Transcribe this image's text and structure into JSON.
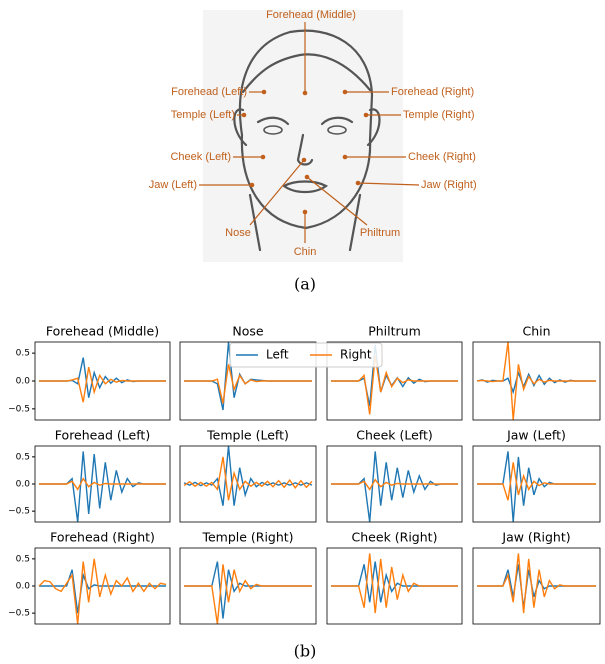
{
  "diagram": {
    "labels": [
      "Forehead (Middle)",
      "Forehead (Left)",
      "Forehead (Right)",
      "Temple (Left)",
      "Temple (Right)",
      "Cheek (Left)",
      "Cheek (Right)",
      "Jaw (Left)",
      "Jaw (Right)",
      "Nose",
      "Philtrum",
      "Chin"
    ],
    "caption": "(a)"
  },
  "chart_data": [
    {
      "type": "line",
      "title": "Forehead (Middle)",
      "ylim": [
        -0.7,
        0.7
      ],
      "yticks": [
        0.5,
        {
          "value": 0,
          "label": "0.0"
        },
        {
          "value": -0.5,
          "label": "−0.5"
        }
      ],
      "series": [
        {
          "name": "Left",
          "color": "#1f77b4",
          "values": [
            0,
            0,
            0,
            0,
            0,
            0,
            0.01,
            -0.05,
            0.42,
            -0.3,
            0.15,
            -0.12,
            0.08,
            -0.04,
            0.05,
            -0.03,
            0.02,
            -0.01,
            0,
            0,
            0,
            0,
            0,
            0
          ]
        },
        {
          "name": "Right",
          "color": "#ff7f0e",
          "values": [
            0,
            0,
            0,
            0,
            0,
            0,
            0.02,
            0.05,
            -0.38,
            0.25,
            -0.2,
            0.1,
            -0.05,
            0.03,
            -0.02,
            0.01,
            0,
            0,
            0,
            0,
            0,
            0,
            0,
            0
          ]
        }
      ]
    },
    {
      "type": "line",
      "title": "Nose",
      "ylim": [
        -0.7,
        0.7
      ],
      "series": [
        {
          "name": "Left",
          "color": "#1f77b4",
          "values": [
            0,
            0,
            0,
            0,
            0,
            0,
            -0.05,
            -0.52,
            0.7,
            -0.3,
            0.12,
            -0.05,
            0.03,
            0.02,
            0.01,
            0,
            0,
            0,
            0,
            0,
            0,
            0,
            0,
            0
          ]
        },
        {
          "name": "Right",
          "color": "#ff7f0e",
          "values": [
            0,
            0,
            0,
            0,
            0,
            0,
            0.03,
            -0.4,
            0.3,
            -0.15,
            0.1,
            -0.05,
            0.02,
            -0.01,
            0,
            0,
            0,
            0,
            0,
            0,
            0,
            0,
            0,
            0
          ]
        }
      ]
    },
    {
      "type": "line",
      "title": "Philtrum",
      "ylim": [
        -0.7,
        0.7
      ],
      "series": [
        {
          "name": "Left",
          "color": "#1f77b4",
          "values": [
            0,
            0,
            0,
            0,
            0,
            0,
            0.05,
            -0.45,
            0.65,
            -0.2,
            0.1,
            -0.08,
            0.06,
            -0.1,
            0.06,
            -0.04,
            0.03,
            -0.01,
            0,
            0,
            0,
            0,
            0,
            0
          ]
        },
        {
          "name": "Right",
          "color": "#ff7f0e",
          "values": [
            0,
            0,
            0,
            0,
            0,
            0,
            0.1,
            -0.6,
            0.45,
            -0.2,
            0.15,
            -0.1,
            0.05,
            -0.03,
            0.02,
            0,
            0,
            0,
            0,
            0,
            0,
            0,
            0,
            0
          ]
        }
      ]
    },
    {
      "type": "line",
      "title": "Chin",
      "ylim": [
        -0.7,
        0.7
      ],
      "series": [
        {
          "name": "Left",
          "color": "#1f77b4",
          "values": [
            0,
            0.02,
            -0.02,
            0.01,
            0,
            0,
            0.05,
            -0.2,
            0.15,
            -0.1,
            0.12,
            -0.08,
            0.1,
            -0.06,
            0.05,
            -0.03,
            0.02,
            -0.02,
            0.01,
            0,
            0,
            0,
            0,
            0
          ]
        },
        {
          "name": "Right",
          "color": "#ff7f0e",
          "values": [
            0,
            0.01,
            0,
            -0.01,
            0,
            0,
            0.7,
            -0.7,
            0.3,
            -0.15,
            0.08,
            -0.05,
            0.03,
            -0.02,
            0.01,
            0,
            0,
            0,
            0,
            0,
            0,
            0,
            0,
            0
          ]
        }
      ]
    },
    {
      "type": "line",
      "title": "Forehead (Left)",
      "ylim": [
        -0.7,
        0.7
      ],
      "yticks": [
        0.5,
        {
          "value": 0,
          "label": "0.0"
        },
        {
          "value": -0.5,
          "label": "−0.5"
        }
      ],
      "series": [
        {
          "name": "Left",
          "color": "#1f77b4",
          "values": [
            0,
            0,
            0,
            0,
            0,
            0,
            0.1,
            -0.7,
            0.6,
            -0.55,
            0.55,
            -0.45,
            0.4,
            -0.3,
            0.25,
            -0.15,
            0.1,
            -0.05,
            0.02,
            0,
            0,
            0,
            0,
            0
          ]
        },
        {
          "name": "Right",
          "color": "#ff7f0e",
          "values": [
            0,
            0,
            0,
            0,
            0,
            0,
            0.05,
            -0.1,
            0.1,
            -0.05,
            0.03,
            -0.02,
            0.01,
            0,
            0,
            0,
            0,
            0,
            0,
            0,
            0,
            0,
            0,
            0
          ]
        }
      ]
    },
    {
      "type": "line",
      "title": "Temple (Left)",
      "ylim": [
        -0.7,
        0.7
      ],
      "series": [
        {
          "name": "Left",
          "color": "#1f77b4",
          "values": [
            0.02,
            -0.02,
            0.03,
            -0.03,
            0.02,
            -0.02,
            0.1,
            -0.4,
            0.7,
            -0.4,
            0.3,
            -0.2,
            0.1,
            -0.05,
            0.03,
            -0.02,
            0.02,
            -0.02,
            0.02,
            -0.02,
            0.02,
            -0.02,
            0.02,
            -0.02
          ]
        },
        {
          "name": "Right",
          "color": "#ff7f0e",
          "values": [
            -0.03,
            0.04,
            -0.04,
            0.03,
            -0.04,
            0.03,
            -0.1,
            0.5,
            -0.3,
            0.2,
            -0.1,
            0.05,
            -0.04,
            0.03,
            -0.04,
            0.05,
            -0.05,
            0.06,
            -0.06,
            0.07,
            -0.07,
            0.06,
            -0.06,
            0.05
          ]
        }
      ]
    },
    {
      "type": "line",
      "title": "Cheek (Left)",
      "ylim": [
        -0.7,
        0.7
      ],
      "series": [
        {
          "name": "Left",
          "color": "#1f77b4",
          "values": [
            0,
            0,
            0,
            0,
            0,
            0,
            0.1,
            -0.7,
            0.6,
            -0.4,
            0.4,
            -0.3,
            0.3,
            -0.25,
            0.25,
            -0.15,
            0.15,
            -0.1,
            0.05,
            -0.02,
            0,
            0,
            0,
            0
          ]
        },
        {
          "name": "Right",
          "color": "#ff7f0e",
          "values": [
            0,
            0,
            0,
            0,
            0,
            0,
            0.05,
            -0.1,
            0.08,
            -0.05,
            0.03,
            -0.02,
            0.01,
            0,
            0,
            0,
            0,
            0,
            0,
            0,
            0,
            0,
            0,
            0
          ]
        }
      ]
    },
    {
      "type": "line",
      "title": "Jaw (Left)",
      "ylim": [
        -0.7,
        0.7
      ],
      "series": [
        {
          "name": "Left",
          "color": "#1f77b4",
          "values": [
            0,
            0,
            0,
            0,
            0,
            0,
            0.6,
            -0.7,
            0.5,
            -0.4,
            0.3,
            -0.2,
            0.1,
            -0.05,
            0.03,
            0,
            0,
            0,
            0,
            0,
            0,
            0,
            0,
            0
          ]
        },
        {
          "name": "Right",
          "color": "#ff7f0e",
          "values": [
            0,
            0,
            0,
            0,
            0,
            0,
            -0.3,
            0.4,
            -0.2,
            0.15,
            -0.1,
            0.05,
            -0.03,
            0.02,
            0,
            0,
            0,
            0,
            0,
            0,
            0,
            0,
            0,
            0
          ]
        }
      ]
    },
    {
      "type": "line",
      "title": "Forehead (Right)",
      "ylim": [
        -0.7,
        0.7
      ],
      "yticks": [
        0.5,
        {
          "value": 0,
          "label": "0.0"
        },
        {
          "value": -0.5,
          "label": "−0.5"
        }
      ],
      "series": [
        {
          "name": "Left",
          "color": "#1f77b4",
          "values": [
            0,
            0,
            0,
            0,
            0,
            0,
            0.3,
            -0.5,
            0.2,
            -0.05,
            0.02,
            0,
            0,
            0,
            0,
            0,
            0,
            0,
            0,
            0,
            0,
            0,
            0,
            0
          ]
        },
        {
          "name": "Right",
          "color": "#ff7f0e",
          "values": [
            0,
            0.1,
            0.08,
            -0.05,
            -0.1,
            0.05,
            0.2,
            -0.7,
            0.45,
            -0.3,
            0.5,
            -0.2,
            0.2,
            -0.15,
            0.1,
            0,
            0.15,
            -0.1,
            0.05,
            -0.1,
            0.05,
            -0.05,
            0.05,
            0.03
          ]
        }
      ]
    },
    {
      "type": "line",
      "title": "Temple (Right)",
      "ylim": [
        -0.7,
        0.7
      ],
      "series": [
        {
          "name": "Left",
          "color": "#1f77b4",
          "values": [
            0,
            0,
            0,
            0,
            0,
            0,
            0.45,
            -0.6,
            0.3,
            -0.1,
            0.05,
            0,
            0,
            0,
            0,
            0,
            0,
            0,
            0,
            0,
            0,
            0,
            0,
            0
          ]
        },
        {
          "name": "Right",
          "color": "#ff7f0e",
          "values": [
            0,
            0,
            0,
            0,
            0,
            0,
            -0.7,
            0.4,
            -0.3,
            0.3,
            -0.1,
            0.1,
            -0.05,
            0.03,
            0,
            0,
            0,
            0,
            0,
            0,
            0,
            0,
            0,
            0
          ]
        }
      ]
    },
    {
      "type": "line",
      "title": "Cheek (Right)",
      "ylim": [
        -0.7,
        0.7
      ],
      "series": [
        {
          "name": "Left",
          "color": "#1f77b4",
          "values": [
            0,
            0,
            0,
            0,
            0,
            0,
            0.4,
            -0.3,
            0.45,
            -0.3,
            0.2,
            -0.1,
            0.05,
            0,
            0,
            0,
            0,
            0,
            0,
            0,
            0,
            0,
            0,
            0
          ]
        },
        {
          "name": "Right",
          "color": "#ff7f0e",
          "values": [
            0,
            0,
            0,
            0,
            0,
            0,
            -0.4,
            0.6,
            -0.5,
            0.5,
            -0.4,
            0.35,
            -0.25,
            0.2,
            -0.1,
            0.05,
            0,
            0,
            0,
            0,
            0,
            0,
            0,
            0
          ]
        }
      ]
    },
    {
      "type": "line",
      "title": "Jaw (Right)",
      "ylim": [
        -0.7,
        0.7
      ],
      "series": [
        {
          "name": "Left",
          "color": "#1f77b4",
          "values": [
            0,
            0,
            0,
            0,
            0,
            0,
            0.3,
            -0.2,
            0.4,
            -0.4,
            0.3,
            -0.2,
            0.1,
            -0.05,
            0,
            0,
            0,
            0,
            0,
            0,
            0,
            0,
            0,
            0
          ]
        },
        {
          "name": "Right",
          "color": "#ff7f0e",
          "values": [
            0,
            0,
            0,
            0,
            0,
            0,
            0.2,
            -0.3,
            0.6,
            -0.5,
            0.5,
            -0.4,
            0.3,
            -0.2,
            0.1,
            -0.05,
            0.02,
            0,
            0,
            0,
            0,
            0,
            0,
            0
          ]
        }
      ]
    }
  ],
  "caption_b": "(b)"
}
